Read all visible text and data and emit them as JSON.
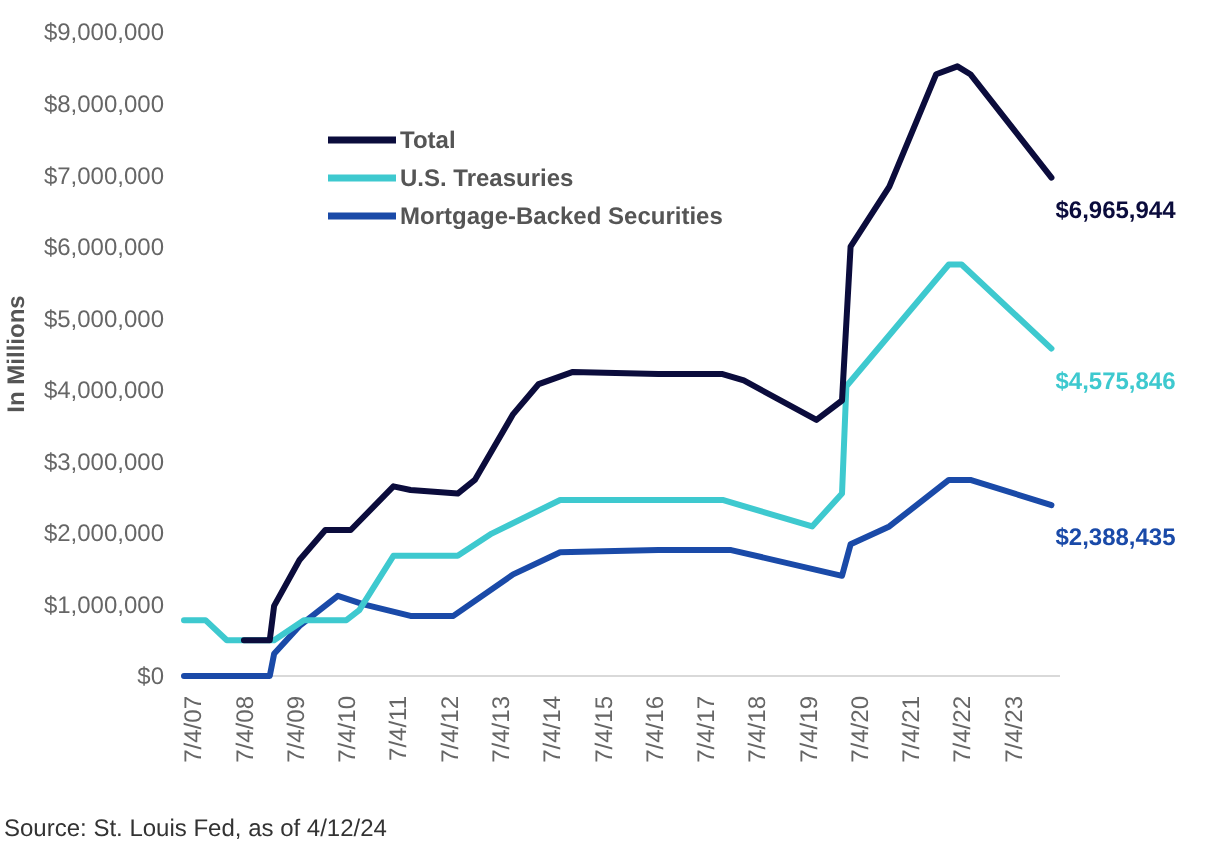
{
  "chart_data": {
    "type": "line",
    "ylabel": "In Millions",
    "xlim": [
      "2007-05",
      "2024-06"
    ],
    "ylim": [
      0,
      9000000
    ],
    "xticks": [
      {
        "value": "2007-07-04",
        "label": "7/4/07"
      },
      {
        "value": "2008-07-04",
        "label": "7/4/08"
      },
      {
        "value": "2009-07-04",
        "label": "7/4/09"
      },
      {
        "value": "2010-07-04",
        "label": "7/4/10"
      },
      {
        "value": "2011-07-04",
        "label": "7/4/11"
      },
      {
        "value": "2012-07-04",
        "label": "7/4/12"
      },
      {
        "value": "2013-07-04",
        "label": "7/4/13"
      },
      {
        "value": "2014-07-04",
        "label": "7/4/14"
      },
      {
        "value": "2015-07-04",
        "label": "7/4/15"
      },
      {
        "value": "2016-07-04",
        "label": "7/4/16"
      },
      {
        "value": "2017-07-04",
        "label": "7/4/17"
      },
      {
        "value": "2018-07-04",
        "label": "7/4/18"
      },
      {
        "value": "2019-07-04",
        "label": "7/4/19"
      },
      {
        "value": "2020-07-04",
        "label": "7/4/20"
      },
      {
        "value": "2021-07-04",
        "label": "7/4/21"
      },
      {
        "value": "2022-07-04",
        "label": "7/4/22"
      },
      {
        "value": "2023-07-04",
        "label": "7/4/23"
      }
    ],
    "yticks": [
      {
        "value": 0,
        "label": "$0"
      },
      {
        "value": 1000000,
        "label": "$1,000,000"
      },
      {
        "value": 2000000,
        "label": "$2,000,000"
      },
      {
        "value": 3000000,
        "label": "$3,000,000"
      },
      {
        "value": 4000000,
        "label": "$4,000,000"
      },
      {
        "value": 5000000,
        "label": "$5,000,000"
      },
      {
        "value": 6000000,
        "label": "$6,000,000"
      },
      {
        "value": 7000000,
        "label": "$7,000,000"
      },
      {
        "value": 8000000,
        "label": "$8,000,000"
      },
      {
        "value": 9000000,
        "label": "$9,000,000"
      }
    ],
    "grid": false,
    "legend": "top left",
    "line_style": "solid",
    "marker": "none",
    "series": [
      {
        "name": "Total",
        "color": "#0b0c3c",
        "x": [
          "2008-07",
          "2009-01",
          "2009-02",
          "2009-08",
          "2010-02",
          "2010-08",
          "2011-06",
          "2011-10",
          "2012-09",
          "2013-01",
          "2013-10",
          "2014-04",
          "2014-12",
          "2016-08",
          "2017-11",
          "2018-04",
          "2019-09",
          "2020-03",
          "2020-05",
          "2021-02",
          "2022-01",
          "2022-06",
          "2022-09",
          "2024-04"
        ],
        "values": [
          500000,
          500000,
          980000,
          1620000,
          2040000,
          2040000,
          2650000,
          2600000,
          2550000,
          2740000,
          3660000,
          4080000,
          4250000,
          4220000,
          4220000,
          4130000,
          3580000,
          3850000,
          6000000,
          6840000,
          8410000,
          8520000,
          8410000,
          6965944
        ]
      },
      {
        "name": "U.S. Treasuries",
        "color": "#3ec9cf",
        "x": [
          "2007-05",
          "2007-10",
          "2008-03",
          "2009-02",
          "2009-09",
          "2010-07",
          "2010-10",
          "2011-06",
          "2012-09",
          "2013-05",
          "2014-09",
          "2016-08",
          "2017-11",
          "2019-08",
          "2020-03",
          "2020-04",
          "2022-04",
          "2022-07",
          "2024-04"
        ],
        "values": [
          780000,
          780000,
          500000,
          500000,
          780000,
          780000,
          920000,
          1680000,
          1680000,
          1990000,
          2460000,
          2460000,
          2460000,
          2090000,
          2550000,
          4050000,
          5750000,
          5750000,
          4575846
        ]
      },
      {
        "name": "Mortgage-Backed Securities",
        "color": "#1a4aa8",
        "x": [
          "2007-05",
          "2009-01",
          "2009-02",
          "2009-08",
          "2010-05",
          "2010-11",
          "2011-10",
          "2012-08",
          "2013-10",
          "2014-09",
          "2016-08",
          "2018-01",
          "2020-03",
          "2020-05",
          "2021-02",
          "2022-04",
          "2022-09",
          "2024-04"
        ],
        "values": [
          0,
          0,
          310000,
          700000,
          1120000,
          1000000,
          840000,
          840000,
          1420000,
          1730000,
          1760000,
          1760000,
          1400000,
          1840000,
          2090000,
          2740000,
          2740000,
          2388435
        ]
      }
    ],
    "annotations": [
      {
        "text": "$6,965,944",
        "x": "2024-04",
        "y": 6965944
      },
      {
        "text": "$4,575,846",
        "x": "2024-04",
        "y": 4575846
      },
      {
        "text": "$2,388,435",
        "x": "2024-04",
        "y": 2388435
      },
      "Source: St. Louis Fed, as of 4/12/24"
    ]
  }
}
